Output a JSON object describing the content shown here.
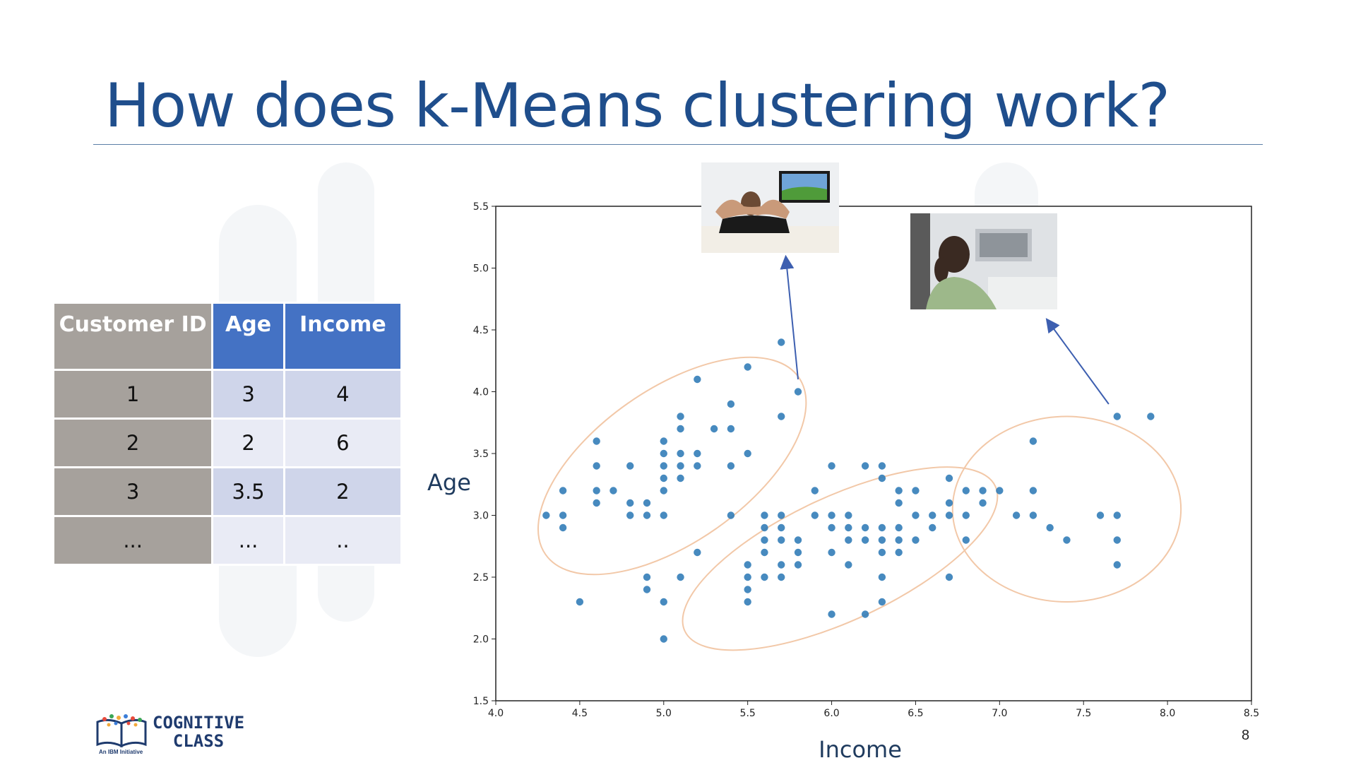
{
  "slide": {
    "title": "How does k-Means clustering work?",
    "page_number": "8"
  },
  "table": {
    "headers": [
      "Customer ID",
      "Age",
      "Income"
    ],
    "rows": [
      [
        "1",
        "3",
        "4"
      ],
      [
        "2",
        "2",
        "6"
      ],
      [
        "3",
        "3.5",
        "2"
      ],
      [
        "...",
        "...",
        ".."
      ]
    ]
  },
  "logo": {
    "line1": "COGNITIVE",
    "line2": "CLASS",
    "tagline": "An IBM Initiative"
  },
  "colors": {
    "title": "#1f4e8c",
    "header_blue": "#4472c4",
    "header_grey": "#a6a19c",
    "point": "#2e7ab6",
    "cluster_outline": "#f2c8a8",
    "arrow": "#3d5fb0"
  },
  "chart_data": {
    "type": "scatter",
    "xlabel": "Income",
    "ylabel": "Age",
    "xlim": [
      4.0,
      8.5
    ],
    "ylim": [
      1.5,
      5.5
    ],
    "xticks": [
      4.0,
      4.5,
      5.0,
      5.5,
      6.0,
      6.5,
      7.0,
      7.5,
      8.0,
      8.5
    ],
    "yticks": [
      1.5,
      2.0,
      2.5,
      3.0,
      3.5,
      4.0,
      4.5,
      5.0,
      5.5
    ],
    "grid": false,
    "points": [
      [
        4.3,
        3.0
      ],
      [
        4.4,
        3.2
      ],
      [
        4.4,
        3.0
      ],
      [
        4.4,
        2.9
      ],
      [
        4.5,
        2.3
      ],
      [
        4.6,
        3.6
      ],
      [
        4.6,
        3.4
      ],
      [
        4.6,
        3.2
      ],
      [
        4.6,
        3.1
      ],
      [
        4.7,
        3.2
      ],
      [
        4.8,
        3.4
      ],
      [
        4.8,
        3.1
      ],
      [
        4.8,
        3.0
      ],
      [
        4.9,
        3.1
      ],
      [
        4.9,
        3.0
      ],
      [
        4.9,
        2.5
      ],
      [
        4.9,
        2.4
      ],
      [
        5.0,
        3.6
      ],
      [
        5.0,
        3.5
      ],
      [
        5.0,
        3.4
      ],
      [
        5.0,
        3.3
      ],
      [
        5.0,
        3.2
      ],
      [
        5.0,
        3.0
      ],
      [
        5.0,
        2.3
      ],
      [
        5.0,
        2.0
      ],
      [
        5.1,
        3.8
      ],
      [
        5.1,
        3.7
      ],
      [
        5.1,
        3.5
      ],
      [
        5.1,
        3.4
      ],
      [
        5.1,
        3.3
      ],
      [
        5.1,
        2.5
      ],
      [
        5.2,
        4.1
      ],
      [
        5.2,
        3.5
      ],
      [
        5.2,
        3.4
      ],
      [
        5.2,
        2.7
      ],
      [
        5.3,
        3.7
      ],
      [
        5.4,
        3.9
      ],
      [
        5.4,
        3.7
      ],
      [
        5.4,
        3.4
      ],
      [
        5.4,
        3.0
      ],
      [
        5.5,
        4.2
      ],
      [
        5.5,
        3.5
      ],
      [
        5.5,
        2.6
      ],
      [
        5.5,
        2.5
      ],
      [
        5.5,
        2.4
      ],
      [
        5.5,
        2.3
      ],
      [
        5.6,
        3.0
      ],
      [
        5.6,
        2.9
      ],
      [
        5.6,
        2.8
      ],
      [
        5.6,
        2.7
      ],
      [
        5.6,
        2.5
      ],
      [
        5.7,
        4.4
      ],
      [
        5.7,
        3.8
      ],
      [
        5.7,
        3.0
      ],
      [
        5.7,
        2.9
      ],
      [
        5.7,
        2.8
      ],
      [
        5.7,
        2.6
      ],
      [
        5.7,
        2.5
      ],
      [
        5.8,
        4.0
      ],
      [
        5.8,
        2.8
      ],
      [
        5.8,
        2.7
      ],
      [
        5.8,
        2.6
      ],
      [
        5.9,
        3.2
      ],
      [
        5.9,
        3.0
      ],
      [
        6.0,
        3.4
      ],
      [
        6.0,
        3.0
      ],
      [
        6.0,
        2.9
      ],
      [
        6.0,
        2.7
      ],
      [
        6.0,
        2.2
      ],
      [
        6.1,
        3.0
      ],
      [
        6.1,
        2.9
      ],
      [
        6.1,
        2.8
      ],
      [
        6.1,
        2.6
      ],
      [
        6.2,
        3.4
      ],
      [
        6.2,
        2.9
      ],
      [
        6.2,
        2.8
      ],
      [
        6.2,
        2.2
      ],
      [
        6.3,
        3.4
      ],
      [
        6.3,
        3.3
      ],
      [
        6.3,
        2.9
      ],
      [
        6.3,
        2.8
      ],
      [
        6.3,
        2.7
      ],
      [
        6.3,
        2.5
      ],
      [
        6.3,
        2.3
      ],
      [
        6.4,
        3.2
      ],
      [
        6.4,
        3.1
      ],
      [
        6.4,
        2.9
      ],
      [
        6.4,
        2.8
      ],
      [
        6.4,
        2.7
      ],
      [
        6.5,
        3.2
      ],
      [
        6.5,
        3.0
      ],
      [
        6.5,
        2.8
      ],
      [
        6.6,
        3.0
      ],
      [
        6.6,
        2.9
      ],
      [
        6.7,
        3.3
      ],
      [
        6.7,
        3.1
      ],
      [
        6.7,
        3.0
      ],
      [
        6.7,
        2.5
      ],
      [
        6.8,
        3.2
      ],
      [
        6.8,
        3.0
      ],
      [
        6.8,
        2.8
      ],
      [
        6.9,
        3.2
      ],
      [
        6.9,
        3.1
      ],
      [
        7.0,
        3.2
      ],
      [
        7.1,
        3.0
      ],
      [
        7.2,
        3.6
      ],
      [
        7.2,
        3.2
      ],
      [
        7.2,
        3.0
      ],
      [
        7.3,
        2.9
      ],
      [
        7.4,
        2.8
      ],
      [
        7.6,
        3.0
      ],
      [
        7.7,
        3.8
      ],
      [
        7.7,
        3.0
      ],
      [
        7.7,
        2.8
      ],
      [
        7.7,
        2.6
      ],
      [
        7.9,
        3.8
      ]
    ],
    "clusters": [
      {
        "center": [
          5.05,
          3.4
        ],
        "semi_axes": [
          0.92,
          0.62
        ],
        "rotation_deg": 35
      },
      {
        "center": [
          6.05,
          2.65
        ],
        "semi_axes": [
          1.02,
          0.5
        ],
        "rotation_deg": 25
      },
      {
        "center": [
          7.4,
          3.05
        ],
        "semi_axes": [
          0.68,
          0.75
        ],
        "rotation_deg": 0
      }
    ],
    "arrows": [
      {
        "from": [
          5.8,
          4.1
        ],
        "to": [
          5.73,
          5.05
        ]
      },
      {
        "from": [
          7.65,
          3.9
        ],
        "to": [
          7.3,
          4.55
        ]
      }
    ]
  }
}
